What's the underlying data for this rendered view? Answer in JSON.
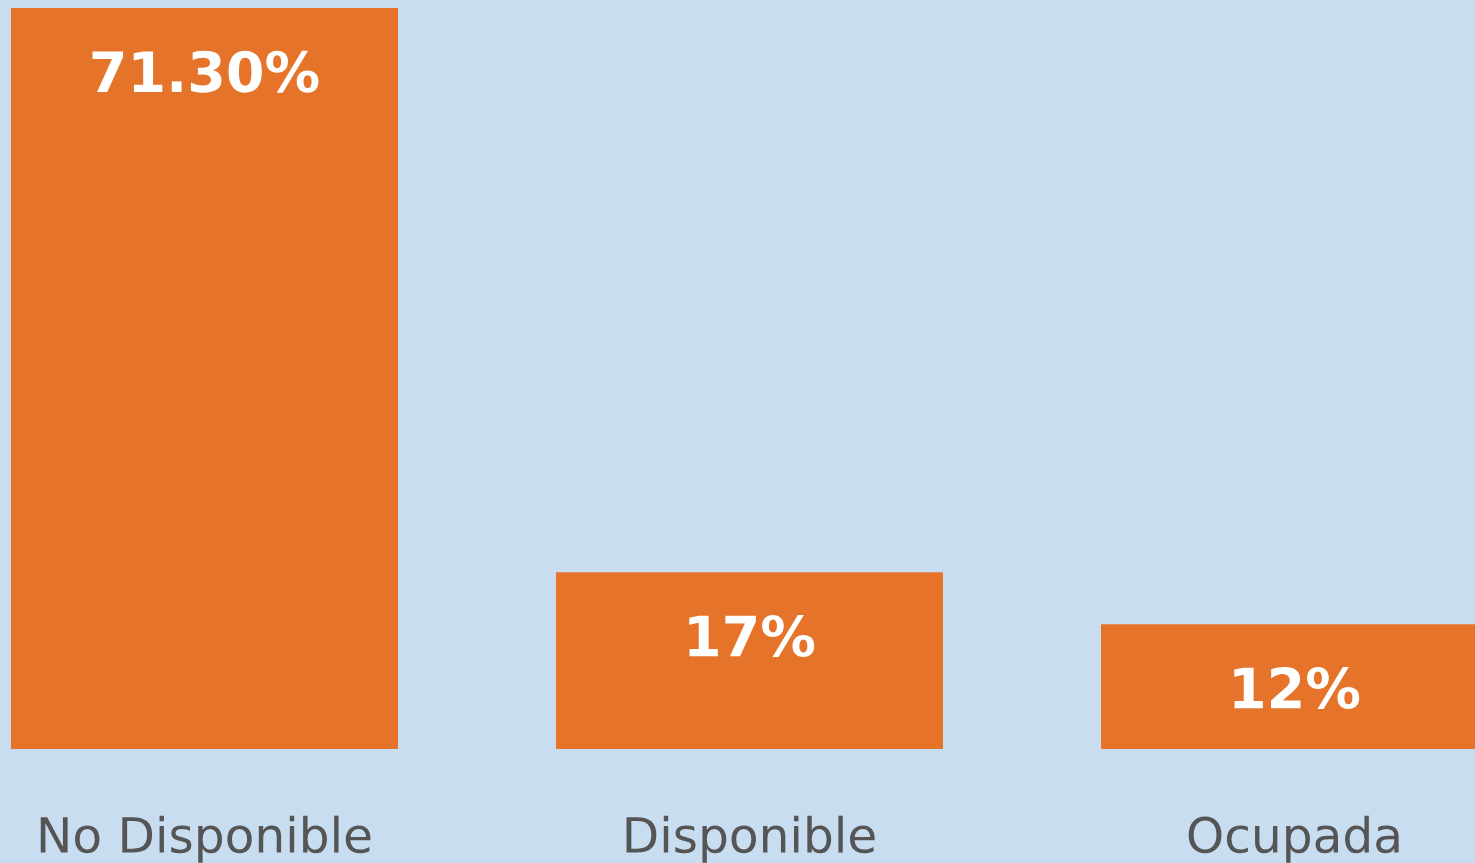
{
  "chart_data": {
    "type": "bar",
    "categories": [
      "No Disponible",
      "Disponible",
      "Ocupada"
    ],
    "values": [
      71.3,
      17,
      12
    ],
    "value_labels": [
      "71.30%",
      "17%",
      "12%"
    ],
    "color": "#e5732a"
  }
}
